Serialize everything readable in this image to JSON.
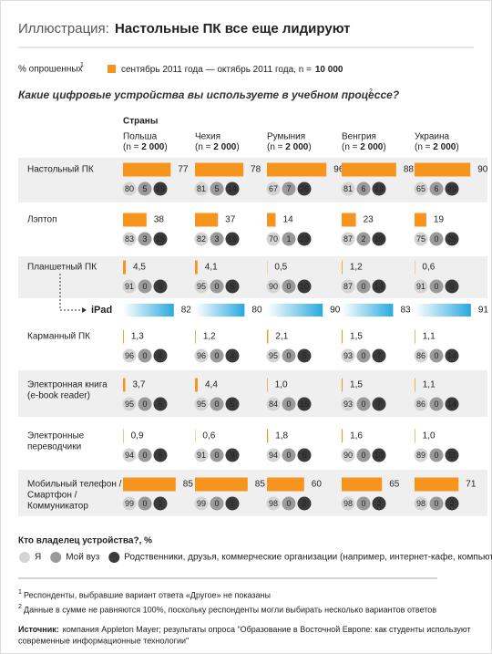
{
  "header": {
    "label": "Иллюстрация:",
    "title": "Настольные ПК все еще лидируют"
  },
  "chart_data": {
    "type": "bar",
    "unit_note": "% опрошенных",
    "unit_note_ref": "1",
    "legend_text": "сентябрь 2011 года — октябрь 2011 года, n =",
    "legend_n": "10 000",
    "color": "#f7941d",
    "question": "Какие цифровые устройства вы используете в учебном процессе?",
    "question_ref": "2",
    "countries_heading": "Страны",
    "countries": [
      {
        "name": "Польша",
        "sample": [
          "(n = ",
          "2 000",
          ")"
        ]
      },
      {
        "name": "Чехия",
        "sample": [
          "(n = ",
          "2 000",
          ")"
        ]
      },
      {
        "name": "Румыния",
        "sample": [
          "(n = ",
          "2 000",
          ")"
        ]
      },
      {
        "name": "Венгрия",
        "sample": [
          "(n = ",
          "2 000",
          ")"
        ]
      },
      {
        "name": "Украина",
        "sample": [
          "(n = ",
          "2 000",
          ")"
        ]
      }
    ],
    "rows": [
      {
        "label": [
          "Настольный ПК"
        ],
        "values": [
          77,
          78,
          96,
          88,
          90
        ],
        "owners": [
          [
            80,
            5,
            15
          ],
          [
            81,
            5,
            14
          ],
          [
            67,
            7,
            26
          ],
          [
            81,
            6,
            13
          ],
          [
            65,
            6,
            29
          ]
        ]
      },
      {
        "label": [
          "Лэптоп"
        ],
        "values": [
          38,
          37,
          14,
          23,
          19
        ],
        "owners": [
          [
            83,
            3,
            15
          ],
          [
            82,
            3,
            16
          ],
          [
            70,
            1,
            29
          ],
          [
            87,
            2,
            10
          ],
          [
            75,
            0,
            25
          ]
        ]
      },
      {
        "label": [
          "Планшетный ПК"
        ],
        "values": [
          4.5,
          4.1,
          0.5,
          1.2,
          0.6
        ],
        "value_labels": [
          "4,5",
          "4,1",
          "0,5",
          "1,2",
          "0,6"
        ],
        "owners": [
          [
            91,
            0,
            9
          ],
          [
            95,
            0,
            5
          ],
          [
            90,
            0,
            10
          ],
          [
            87,
            0,
            13
          ],
          [
            91,
            0,
            9
          ]
        ]
      },
      {
        "label": [
          "iPad"
        ],
        "values": [
          82,
          80,
          90,
          83,
          91
        ],
        "color": "#29a9e1"
      },
      {
        "label": [
          "Карманный ПК"
        ],
        "values": [
          1.3,
          1.2,
          2.1,
          1.5,
          1.1
        ],
        "value_labels": [
          "1,3",
          "1,2",
          "2,1",
          "1,5",
          "1,1"
        ],
        "owners": [
          [
            96,
            0,
            4
          ],
          [
            96,
            0,
            4
          ],
          [
            95,
            0,
            5
          ],
          [
            93,
            0,
            7
          ],
          [
            86,
            0,
            14
          ]
        ]
      },
      {
        "label": [
          "Электронная книга",
          "(e-book reader)"
        ],
        "values": [
          3.7,
          4.4,
          1.0,
          1.5,
          1.1
        ],
        "value_labels": [
          "3,7",
          "4,4",
          "1,0",
          "1,5",
          "1,1"
        ],
        "owners": [
          [
            95,
            0,
            5
          ],
          [
            95,
            0,
            5
          ],
          [
            84,
            0,
            16
          ],
          [
            93,
            0,
            7
          ],
          [
            86,
            0,
            14
          ]
        ]
      },
      {
        "label": [
          "Электронные",
          "переводчики"
        ],
        "values": [
          0.9,
          0.6,
          1.8,
          1.6,
          1.0
        ],
        "value_labels": [
          "0,9",
          "0,6",
          "1,8",
          "1,6",
          "1,0"
        ],
        "owners": [
          [
            94,
            0,
            6
          ],
          [
            91,
            0,
            9
          ],
          [
            94,
            0,
            6
          ],
          [
            90,
            0,
            10
          ],
          [
            89,
            0,
            11
          ]
        ]
      },
      {
        "label": [
          "Мобильный телефон /",
          "Смартфон /",
          "Коммуникатор"
        ],
        "values": [
          85,
          85,
          60,
          65,
          71
        ],
        "owners": [
          [
            99,
            0,
            1
          ],
          [
            99,
            0,
            1
          ],
          [
            98,
            0,
            2
          ],
          [
            98,
            0,
            2
          ],
          [
            98,
            0,
            2
          ]
        ]
      }
    ],
    "owner_legend": {
      "title": "Кто владелец устройства?, %",
      "items": [
        "Я",
        "Мой вуз",
        "Родственники, друзья, коммерческие организации (например, интернет-кафе, компьютерный клуб)"
      ],
      "colors": [
        "#d4d4d4",
        "#9a9a9a",
        "#3a3a3a"
      ]
    }
  },
  "footnotes": [
    {
      "ref": "1",
      "text": "Респонденты, выбравшие вариант ответа «Другое» не показаны"
    },
    {
      "ref": "2",
      "text": "Данные в сумме не равняются 100%, поскольку респонденты могли выбирать несколько вариантов ответов"
    }
  ],
  "source": {
    "label": "Источник:",
    "text": [
      "компания Appleton Mayer; результаты опроса \"Образование в Восточной Европе: как студенты используют",
      "современные информационные технологии\""
    ]
  }
}
